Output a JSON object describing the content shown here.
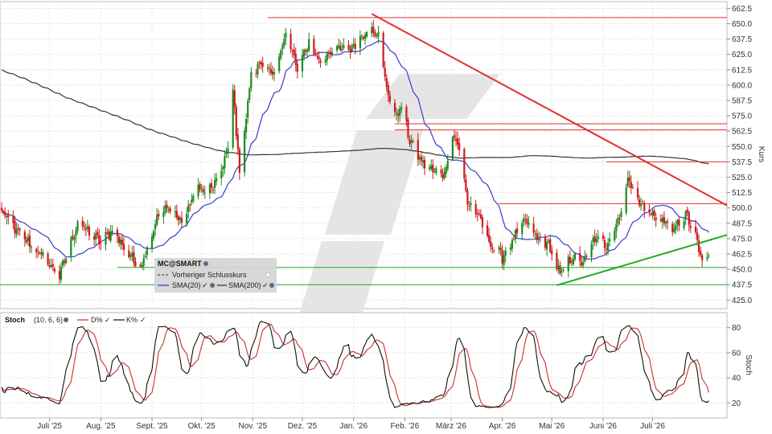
{
  "chart_data": [
    {
      "type": "candlestick",
      "symbol": "MC@SMART",
      "ylabel": "Kurs",
      "ylim": [
        418,
        668
      ],
      "y_ticks": [
        662.5,
        650.0,
        637.5,
        625.0,
        612.5,
        600.0,
        587.5,
        575.0,
        562.5,
        550.0,
        537.5,
        525.0,
        512.5,
        500.0,
        487.5,
        475.0,
        462.5,
        450.0,
        437.5,
        425.0
      ],
      "x_labels": [
        "Juli '25",
        "Aug. '25",
        "Sept. '25",
        "Okt. '25",
        "Nov. '25",
        "Dez. '25",
        "Jan. '26",
        "Feb. '26",
        "März '26",
        "Apr. '26",
        "Mai '26",
        "Juni '26",
        "Juli '26"
      ],
      "grid": true,
      "legend_position": "bottom-left",
      "legend": {
        "symbol": "MC@SMART",
        "prev_close": "Vorheriger Schlusskurs",
        "sma20": "SMA(20)",
        "sma200": "SMA(200)"
      },
      "colors": {
        "up": "#1f8a1f",
        "down": "#d01a1a",
        "sma20": "#3a3acc",
        "sma200": "#333333",
        "resistance": "#e03030",
        "support": "#22aa22"
      },
      "close_anchors": [
        {
          "date": "2025-06-02",
          "close": 497
        },
        {
          "date": "2025-06-12",
          "close": 480
        },
        {
          "date": "2025-06-27",
          "close": 460
        },
        {
          "date": "2025-07-07",
          "close": 445
        },
        {
          "date": "2025-07-18",
          "close": 488
        },
        {
          "date": "2025-08-01",
          "close": 472
        },
        {
          "date": "2025-08-08",
          "close": 482
        },
        {
          "date": "2025-08-18",
          "close": 462
        },
        {
          "date": "2025-08-25",
          "close": 452
        },
        {
          "date": "2025-09-05",
          "close": 495
        },
        {
          "date": "2025-09-12",
          "close": 500
        },
        {
          "date": "2025-09-19",
          "close": 488
        },
        {
          "date": "2025-09-29",
          "close": 518
        },
        {
          "date": "2025-10-03",
          "close": 512
        },
        {
          "date": "2025-10-10",
          "close": 520
        },
        {
          "date": "2025-10-17",
          "close": 548
        },
        {
          "date": "2025-10-20",
          "close": 595
        },
        {
          "date": "2025-10-24",
          "close": 530
        },
        {
          "date": "2025-10-31",
          "close": 608
        },
        {
          "date": "2025-11-07",
          "close": 620
        },
        {
          "date": "2025-11-14",
          "close": 605
        },
        {
          "date": "2025-11-21",
          "close": 645
        },
        {
          "date": "2025-11-28",
          "close": 612
        },
        {
          "date": "2025-12-05",
          "close": 635
        },
        {
          "date": "2025-12-12",
          "close": 618
        },
        {
          "date": "2025-12-19",
          "close": 630
        },
        {
          "date": "2025-12-29",
          "close": 628
        },
        {
          "date": "2026-01-05",
          "close": 638
        },
        {
          "date": "2026-01-12",
          "close": 648
        },
        {
          "date": "2026-01-16",
          "close": 640
        },
        {
          "date": "2026-01-21",
          "close": 598
        },
        {
          "date": "2026-01-26",
          "close": 575
        },
        {
          "date": "2026-01-30",
          "close": 582
        },
        {
          "date": "2026-02-04",
          "close": 555
        },
        {
          "date": "2026-02-11",
          "close": 538
        },
        {
          "date": "2026-02-18",
          "close": 530
        },
        {
          "date": "2026-02-25",
          "close": 528
        },
        {
          "date": "2026-03-02",
          "close": 560
        },
        {
          "date": "2026-03-06",
          "close": 548
        },
        {
          "date": "2026-03-11",
          "close": 505
        },
        {
          "date": "2026-03-18",
          "close": 492
        },
        {
          "date": "2026-03-25",
          "close": 470
        },
        {
          "date": "2026-04-01",
          "close": 460
        },
        {
          "date": "2026-04-08",
          "close": 475
        },
        {
          "date": "2026-04-15",
          "close": 490
        },
        {
          "date": "2026-04-22",
          "close": 475
        },
        {
          "date": "2026-04-29",
          "close": 470
        },
        {
          "date": "2026-05-06",
          "close": 445
        },
        {
          "date": "2026-05-13",
          "close": 460
        },
        {
          "date": "2026-05-20",
          "close": 455
        },
        {
          "date": "2026-05-27",
          "close": 475
        },
        {
          "date": "2026-06-03",
          "close": 470
        },
        {
          "date": "2026-06-10",
          "close": 490
        },
        {
          "date": "2026-06-17",
          "close": 525
        },
        {
          "date": "2026-06-22",
          "close": 505
        },
        {
          "date": "2026-06-30",
          "close": 495
        },
        {
          "date": "2026-07-07",
          "close": 490
        },
        {
          "date": "2026-07-14",
          "close": 482
        },
        {
          "date": "2026-07-21",
          "close": 495
        },
        {
          "date": "2026-07-28",
          "close": 472
        },
        {
          "date": "2026-07-31",
          "close": 455
        },
        {
          "date": "2026-08-04",
          "close": 462
        }
      ],
      "resistance_lines": [
        {
          "price": 655.0,
          "from": "2025-11-10",
          "to": "2026-08-15"
        },
        {
          "price": 568.5,
          "from": "2026-01-26",
          "to": "2026-08-15"
        },
        {
          "price": 563.5,
          "from": "2026-01-26",
          "to": "2026-08-15"
        },
        {
          "price": 537.5,
          "from": "2026-06-03",
          "to": "2026-08-15"
        },
        {
          "price": 503.5,
          "from": "2026-03-30",
          "to": "2026-08-15"
        }
      ],
      "support_lines": [
        {
          "price": 451.5,
          "from": "2025-08-11",
          "to": "2026-08-15"
        },
        {
          "price": 437.5,
          "from": "2025-06-01",
          "to": "2026-08-15"
        }
      ],
      "trend_lines": [
        {
          "kind": "resistance",
          "from": {
            "date": "2026-01-12",
            "price": 658
          },
          "to": {
            "date": "2026-08-15",
            "price": 502
          }
        },
        {
          "kind": "support",
          "from": {
            "date": "2026-05-04",
            "price": 437
          },
          "to": {
            "date": "2026-08-15",
            "price": 478
          }
        }
      ]
    },
    {
      "type": "line",
      "title": "Stoch",
      "params": "(10, 6, 6)",
      "ylabel": "Stoch",
      "ylim": [
        8,
        92
      ],
      "y_ticks": [
        80,
        60,
        40,
        20
      ],
      "series": [
        {
          "name": "D%",
          "color": "#c83030"
        },
        {
          "name": "K%",
          "color": "#111111"
        }
      ]
    }
  ]
}
